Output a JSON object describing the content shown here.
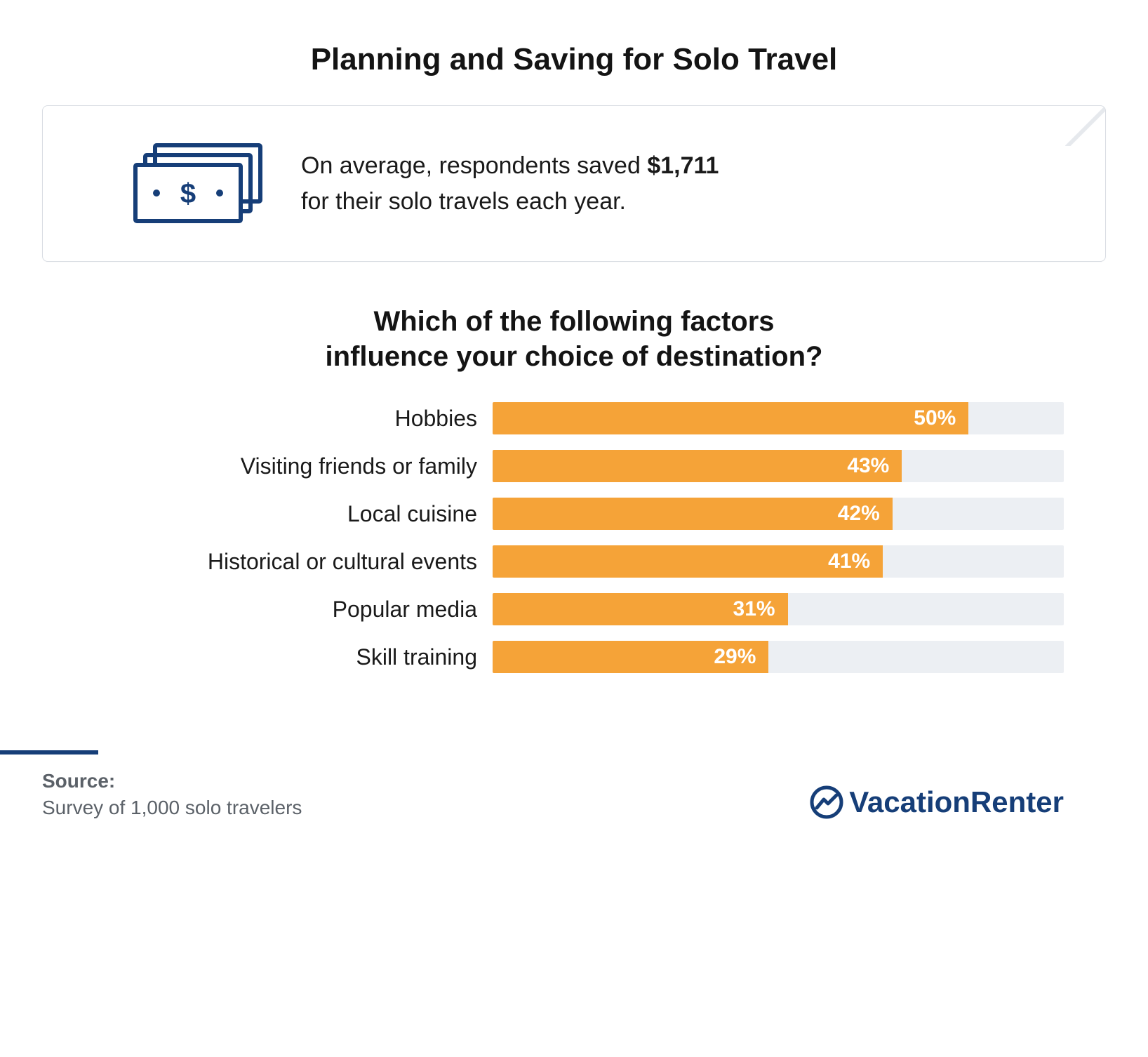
{
  "title": "Planning and Saving for Solo Travel",
  "title_fontsize": 44,
  "title_color": "#141414",
  "callout": {
    "text_prefix": "On average, respondents saved ",
    "bold": "$1,711",
    "text_suffix": " for their solo travels each year.",
    "fontsize": 34,
    "text_color": "#1a1a1a",
    "icon_color": "#163e78",
    "border_color": "#d9dde3",
    "fold_color": "#e6e9ed",
    "background": "#ffffff"
  },
  "chart": {
    "type": "bar-horizontal",
    "title_line1": "Which of the following factors",
    "title_line2": "influence your choice of destination?",
    "title_fontsize": 40,
    "title_color": "#141414",
    "label_fontsize": 32,
    "label_color": "#1a1a1a",
    "value_fontsize": 30,
    "value_color": "#ffffff",
    "bar_color": "#f5a338",
    "track_color": "#eceff3",
    "xlim": [
      0,
      60
    ],
    "bars": [
      {
        "label": "Hobbies",
        "value": 50,
        "text": "50%"
      },
      {
        "label": "Visiting friends or family",
        "value": 43,
        "text": "43%"
      },
      {
        "label": "Local cuisine",
        "value": 42,
        "text": "42%"
      },
      {
        "label": "Historical or cultural events",
        "value": 41,
        "text": "41%"
      },
      {
        "label": "Popular media",
        "value": 31,
        "text": "31%"
      },
      {
        "label": "Skill training",
        "value": 29,
        "text": "29%"
      }
    ]
  },
  "footer": {
    "source_label": "Source:",
    "source_text": "Survey of 1,000 solo travelers",
    "source_fontsize": 28,
    "source_color": "#5b6168",
    "rule_color": "#163e78",
    "brand_name": "VacationRenter",
    "brand_color": "#163e78",
    "brand_fontsize": 42
  }
}
